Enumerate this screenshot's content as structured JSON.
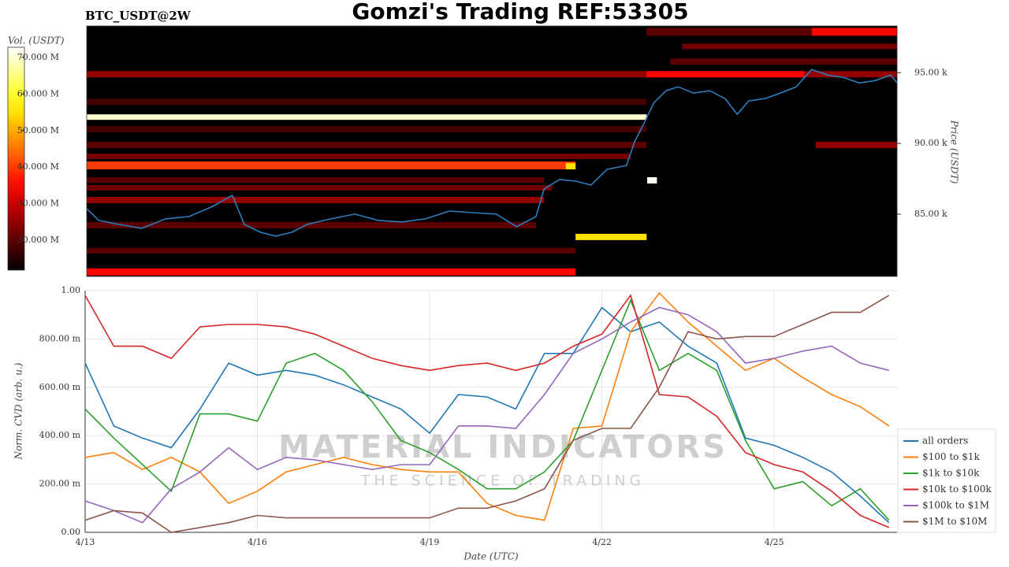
{
  "chart_data": [
    {
      "type": "heatmap",
      "title": "Gomzi's Trading REF:53305",
      "subtitle": "BTC_USDT@2W",
      "ylabel": "Price (USDT)",
      "xlim": [
        0,
        14.14
      ],
      "ylim": [
        80600,
        98300
      ],
      "yticks": [
        {
          "value": 85000,
          "label": "85.00 k"
        },
        {
          "value": 90000,
          "label": "90.00 k"
        },
        {
          "value": 95000,
          "label": "95.00 k"
        }
      ],
      "colormap": "hot",
      "colorbar": {
        "label": "Vol. (USDT)",
        "lim": [
          11800000,
          72800000
        ],
        "ticks": [
          {
            "value": 20000000,
            "label": "20.000 M"
          },
          {
            "value": 30000000,
            "label": "30.000 M"
          },
          {
            "value": 40000000,
            "label": "40.000 M"
          },
          {
            "value": 50000000,
            "label": "50.000 M"
          },
          {
            "value": 60000000,
            "label": "60.000 M"
          },
          {
            "value": 70000000,
            "label": "70.000 M"
          }
        ]
      },
      "cells": [
        {
          "x": [
            0,
            9.77
          ],
          "price": [
            93167,
            92722
          ],
          "vol": 18000000
        },
        {
          "x": [
            0,
            9.77
          ],
          "price": [
            91222,
            90778
          ],
          "vol": 18000000
        },
        {
          "x": [
            0,
            9.77
          ],
          "price": [
            90111,
            89667
          ],
          "vol": 20000000
        },
        {
          "x": [
            0,
            9.49
          ],
          "price": [
            89278,
            88889
          ],
          "vol": 22000000
        },
        {
          "x": [
            0,
            7.98
          ],
          "price": [
            87611,
            87222
          ],
          "vol": 20000000
        },
        {
          "x": [
            0,
            8.12
          ],
          "price": [
            87056,
            86667
          ],
          "vol": 22000000
        },
        {
          "x": [
            0,
            7.98
          ],
          "price": [
            86222,
            85778
          ],
          "vol": 25000000
        },
        {
          "x": [
            0,
            7.84
          ],
          "price": [
            84444,
            84000
          ],
          "vol": 20000000
        },
        {
          "x": [
            0,
            8.53
          ],
          "price": [
            82611,
            82222
          ],
          "vol": 20000000
        },
        {
          "x": [
            0,
            14.14
          ],
          "price": [
            95111,
            94667
          ],
          "vol": 25000000
        },
        {
          "x": [
            9.77,
            12.52
          ],
          "price": [
            95111,
            94667
          ],
          "vol": 35000000
        },
        {
          "x": [
            9.77,
            12.65
          ],
          "price": [
            98167,
            97611
          ],
          "vol": 20000000
        },
        {
          "x": [
            12.65,
            14.14
          ],
          "price": [
            98167,
            97611
          ],
          "vol": 35000000
        },
        {
          "x": [
            10.39,
            14.14
          ],
          "price": [
            97056,
            96667
          ],
          "vol": 22000000
        },
        {
          "x": [
            10.18,
            14.14
          ],
          "price": [
            96000,
            95556
          ],
          "vol": 20000000
        },
        {
          "x": [
            12.72,
            14.14
          ],
          "price": [
            90111,
            89667
          ],
          "vol": 25000000
        },
        {
          "x": [
            0,
            8.53
          ],
          "price": [
            88722,
            88167
          ],
          "vol": 40000000
        },
        {
          "x": [
            8.36,
            8.53
          ],
          "price": [
            88611,
            88167
          ],
          "vol": 55000000
        },
        {
          "x": [
            0,
            8.53
          ],
          "price": [
            81167,
            80667
          ],
          "vol": 35000000
        },
        {
          "x": [
            8.53,
            9.77
          ],
          "price": [
            83611,
            83167
          ],
          "vol": 55000000
        },
        {
          "x": [
            0,
            9.77
          ],
          "price": [
            92056,
            91667
          ],
          "vol": 70000000
        },
        {
          "x": [
            9.78,
            9.95
          ],
          "price": [
            87611,
            87167
          ],
          "vol": 72000000
        }
      ],
      "price_color": "#2f7dbd",
      "price_x": [
        0,
        0.21,
        0.55,
        0.96,
        1.38,
        1.79,
        2.2,
        2.54,
        2.75,
        3.03,
        3.3,
        3.58,
        3.85,
        4.26,
        4.68,
        5.09,
        5.5,
        5.91,
        6.33,
        6.74,
        7.15,
        7.5,
        7.84,
        7.98,
        8.25,
        8.53,
        8.8,
        9.08,
        9.42,
        9.56,
        9.7,
        9.9,
        10.11,
        10.32,
        10.59,
        10.87,
        11.14,
        11.35,
        11.55,
        11.83,
        12.1,
        12.38,
        12.65,
        12.93,
        13.2,
        13.48,
        13.76,
        14.03,
        14.14
      ],
      "price": [
        85390,
        84556,
        84278,
        84000,
        84667,
        84833,
        85556,
        86333,
        84278,
        83722,
        83444,
        83722,
        84278,
        84667,
        85000,
        84556,
        84444,
        84667,
        85222,
        85111,
        85000,
        84111,
        84833,
        86778,
        87444,
        87333,
        87056,
        88167,
        88444,
        90111,
        91222,
        92889,
        93722,
        94000,
        93556,
        93722,
        93167,
        92056,
        93000,
        93167,
        93556,
        94000,
        95222,
        94833,
        94667,
        94278,
        94444,
        94833,
        94278
      ]
    },
    {
      "type": "line",
      "xlabel": "Date (UTC)",
      "ylabel": "Norm. CVD (arb. u.)",
      "xlim": [
        0,
        14.14
      ],
      "ylim": [
        0,
        1
      ],
      "xticks": [
        {
          "value": 0,
          "label": "4/13"
        },
        {
          "value": 3,
          "label": "4/16"
        },
        {
          "value": 6,
          "label": "4/19"
        },
        {
          "value": 9,
          "label": "4/22"
        },
        {
          "value": 12,
          "label": "4/25"
        }
      ],
      "yticks": [
        {
          "value": 0,
          "label": "0.00"
        },
        {
          "value": 0.2,
          "label": "200.00 m"
        },
        {
          "value": 0.4,
          "label": "400.00 m"
        },
        {
          "value": 0.6,
          "label": "600.00 m"
        },
        {
          "value": 0.8,
          "label": "800.00 m"
        },
        {
          "value": 1,
          "label": "1.00"
        }
      ],
      "grid": true,
      "legend": "lower right",
      "watermark": [
        "MATERIAL INDICATORS",
        "THE SCIENCE OF TRADING"
      ],
      "x": [
        0,
        0.5,
        1,
        1.5,
        2,
        2.5,
        3,
        3.5,
        4,
        4.5,
        5,
        5.5,
        6,
        6.5,
        7,
        7.5,
        8,
        8.5,
        9,
        9.5,
        10,
        10.5,
        11,
        11.5,
        12,
        12.5,
        13,
        13.5,
        14
      ],
      "series": [
        {
          "name": "all orders",
          "color": "#1f77b4",
          "values": [
            0.7,
            0.44,
            0.39,
            0.35,
            0.51,
            0.7,
            0.65,
            0.67,
            0.65,
            0.61,
            0.56,
            0.51,
            0.41,
            0.57,
            0.56,
            0.51,
            0.74,
            0.74,
            0.93,
            0.83,
            0.87,
            0.77,
            0.7,
            0.39,
            0.36,
            0.31,
            0.25,
            0.15,
            0.04
          ]
        },
        {
          "name": "$100 to $1k",
          "color": "#ff7f0e",
          "values": [
            0.31,
            0.33,
            0.26,
            0.31,
            0.25,
            0.12,
            0.17,
            0.25,
            0.28,
            0.31,
            0.28,
            0.26,
            0.25,
            0.25,
            0.12,
            0.07,
            0.05,
            0.43,
            0.44,
            0.83,
            0.99,
            0.87,
            0.77,
            0.67,
            0.72,
            0.64,
            0.57,
            0.52,
            0.44
          ]
        },
        {
          "name": "$1k to $10k",
          "color": "#2ca02c",
          "values": [
            0.51,
            0.39,
            0.28,
            0.17,
            0.49,
            0.49,
            0.46,
            0.7,
            0.74,
            0.67,
            0.54,
            0.38,
            0.33,
            0.26,
            0.18,
            0.18,
            0.25,
            0.38,
            0.67,
            0.96,
            0.67,
            0.74,
            0.67,
            0.38,
            0.18,
            0.21,
            0.11,
            0.18,
            0.05
          ]
        },
        {
          "name": "$10k to $100k",
          "color": "#d62728",
          "values": [
            0.98,
            0.77,
            0.77,
            0.72,
            0.85,
            0.86,
            0.86,
            0.85,
            0.82,
            0.77,
            0.72,
            0.69,
            0.67,
            0.69,
            0.7,
            0.67,
            0.7,
            0.77,
            0.82,
            0.98,
            0.57,
            0.56,
            0.48,
            0.33,
            0.28,
            0.25,
            0.17,
            0.07,
            0.02
          ]
        },
        {
          "name": "$100k to $1M",
          "color": "#9467bd",
          "values": [
            0.13,
            0.09,
            0.04,
            0.18,
            0.25,
            0.35,
            0.26,
            0.31,
            0.3,
            0.28,
            0.26,
            0.28,
            0.28,
            0.44,
            0.44,
            0.43,
            0.57,
            0.74,
            0.8,
            0.87,
            0.93,
            0.9,
            0.83,
            0.7,
            0.72,
            0.75,
            0.77,
            0.7,
            0.67
          ]
        },
        {
          "name": "$1M to $10M",
          "color": "#8c564b",
          "values": [
            0.05,
            0.09,
            0.08,
            0.0,
            0.02,
            0.04,
            0.07,
            0.06,
            0.06,
            0.06,
            0.06,
            0.06,
            0.06,
            0.1,
            0.1,
            0.13,
            0.18,
            0.38,
            0.43,
            0.43,
            0.6,
            0.83,
            0.8,
            0.81,
            0.81,
            0.86,
            0.91,
            0.91,
            0.98
          ]
        }
      ]
    }
  ]
}
